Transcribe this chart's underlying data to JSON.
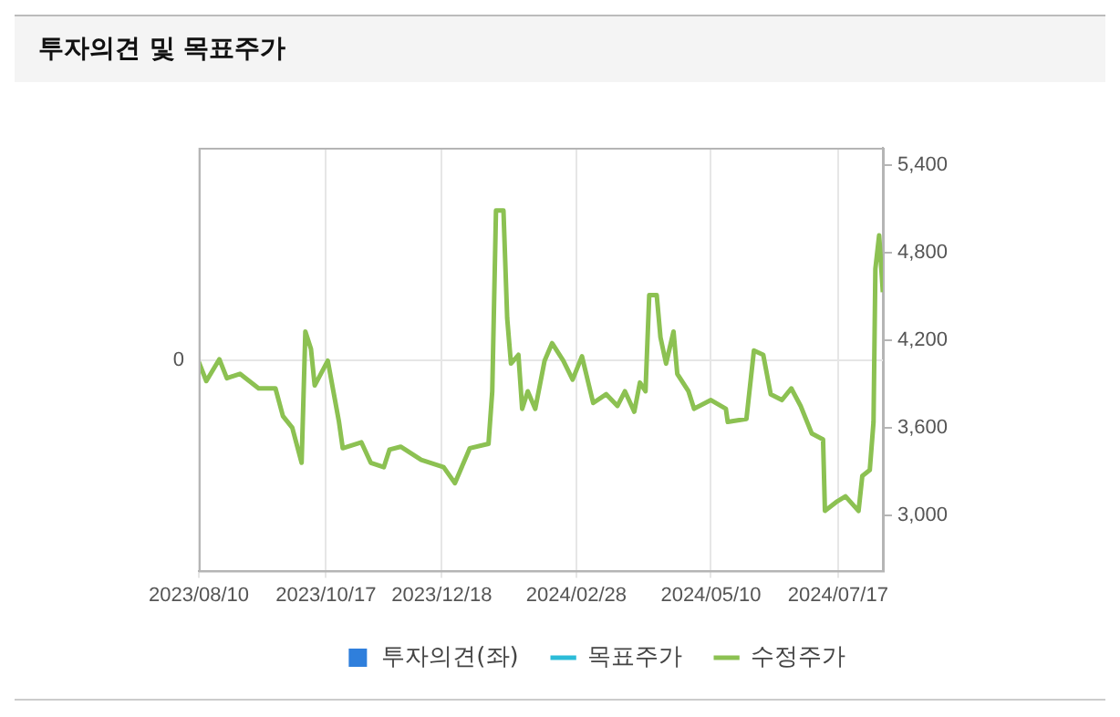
{
  "chart_data": {
    "type": "line",
    "title": "투자의견 및 목표주가",
    "xlim": [
      "2023-08-10",
      "2024-08-10"
    ],
    "xticks": [
      {
        "value": "2023-08-10",
        "label": "2023/08/10"
      },
      {
        "value": "2023-10-17",
        "label": "2023/10/17"
      },
      {
        "value": "2023-12-18",
        "label": "2023/12/18"
      },
      {
        "value": "2024-02-28",
        "label": "2024/02/28"
      },
      {
        "value": "2024-05-10",
        "label": "2024/05/10"
      },
      {
        "value": "2024-07-17",
        "label": "2024/07/17"
      }
    ],
    "annotations": [
      "0"
    ],
    "y2lim": [
      2620,
      5520
    ],
    "y2ticks": [
      {
        "value": 3000,
        "label": "3,000"
      },
      {
        "value": 3600,
        "label": "3,600"
      },
      {
        "value": 4200,
        "label": "4,200"
      },
      {
        "value": 4800,
        "label": "4,800"
      },
      {
        "value": 5400,
        "label": "5,400"
      }
    ],
    "grid": true,
    "legend": "bottom",
    "marker": "none",
    "line_style": "solid",
    "series": [
      {
        "name": "투자의견(좌)",
        "type": "bar",
        "color": "#2f7fdc"
      },
      {
        "name": "목표주가",
        "axis": "y2",
        "color": "#2cbcd8"
      },
      {
        "name": "수정주가",
        "axis": "y2",
        "color": "#8cc152",
        "x": [
          "2023-08-10",
          "2023-08-14",
          "2023-08-21",
          "2023-08-25",
          "2023-09-01",
          "2023-09-11",
          "2023-09-20",
          "2023-09-24",
          "2023-09-29",
          "2023-10-04",
          "2023-10-06",
          "2023-10-09",
          "2023-10-11",
          "2023-10-18",
          "2023-10-21",
          "2023-10-24",
          "2023-10-26",
          "2023-11-05",
          "2023-11-10",
          "2023-11-17",
          "2023-11-20",
          "2023-11-26",
          "2023-12-07",
          "2023-12-19",
          "2023-12-25",
          "2024-01-02",
          "2024-01-12",
          "2024-01-14",
          "2024-01-16",
          "2024-01-20",
          "2024-01-22",
          "2024-01-24",
          "2024-01-28",
          "2024-01-30",
          "2024-02-02",
          "2024-02-06",
          "2024-02-11",
          "2024-02-15",
          "2024-02-21",
          "2024-02-26",
          "2024-03-02",
          "2024-03-08",
          "2024-03-15",
          "2024-03-21",
          "2024-03-25",
          "2024-03-30",
          "2024-04-02",
          "2024-04-05",
          "2024-04-07",
          "2024-04-11",
          "2024-04-13",
          "2024-04-16",
          "2024-04-20",
          "2024-04-22",
          "2024-04-28",
          "2024-05-01",
          "2024-05-10",
          "2024-05-18",
          "2024-05-19",
          "2024-05-29",
          "2024-06-02",
          "2024-06-07",
          "2024-06-11",
          "2024-06-17",
          "2024-06-22",
          "2024-06-27",
          "2024-07-03",
          "2024-07-09",
          "2024-07-10",
          "2024-07-16",
          "2024-07-21",
          "2024-07-28",
          "2024-07-30",
          "2024-08-03",
          "2024-08-05",
          "2024-08-06",
          "2024-08-08",
          "2024-08-10"
        ],
        "values": [
          4050,
          3920,
          4070,
          3940,
          3970,
          3870,
          3870,
          3680,
          3600,
          3360,
          4260,
          4140,
          3890,
          4060,
          3850,
          3640,
          3460,
          3500,
          3360,
          3330,
          3450,
          3470,
          3380,
          3330,
          3220,
          3460,
          3490,
          3850,
          5090,
          5090,
          4350,
          4040,
          4100,
          3730,
          3850,
          3730,
          4060,
          4180,
          4060,
          3930,
          4090,
          3770,
          3830,
          3750,
          3850,
          3710,
          3910,
          3850,
          4510,
          4510,
          4220,
          4040,
          4260,
          3970,
          3850,
          3730,
          3790,
          3730,
          3640,
          3660,
          4130,
          4100,
          3830,
          3790,
          3870,
          3750,
          3560,
          3520,
          3030,
          3090,
          3130,
          3030,
          3270,
          3310,
          3640,
          4690,
          4920,
          4530
        ]
      }
    ]
  }
}
